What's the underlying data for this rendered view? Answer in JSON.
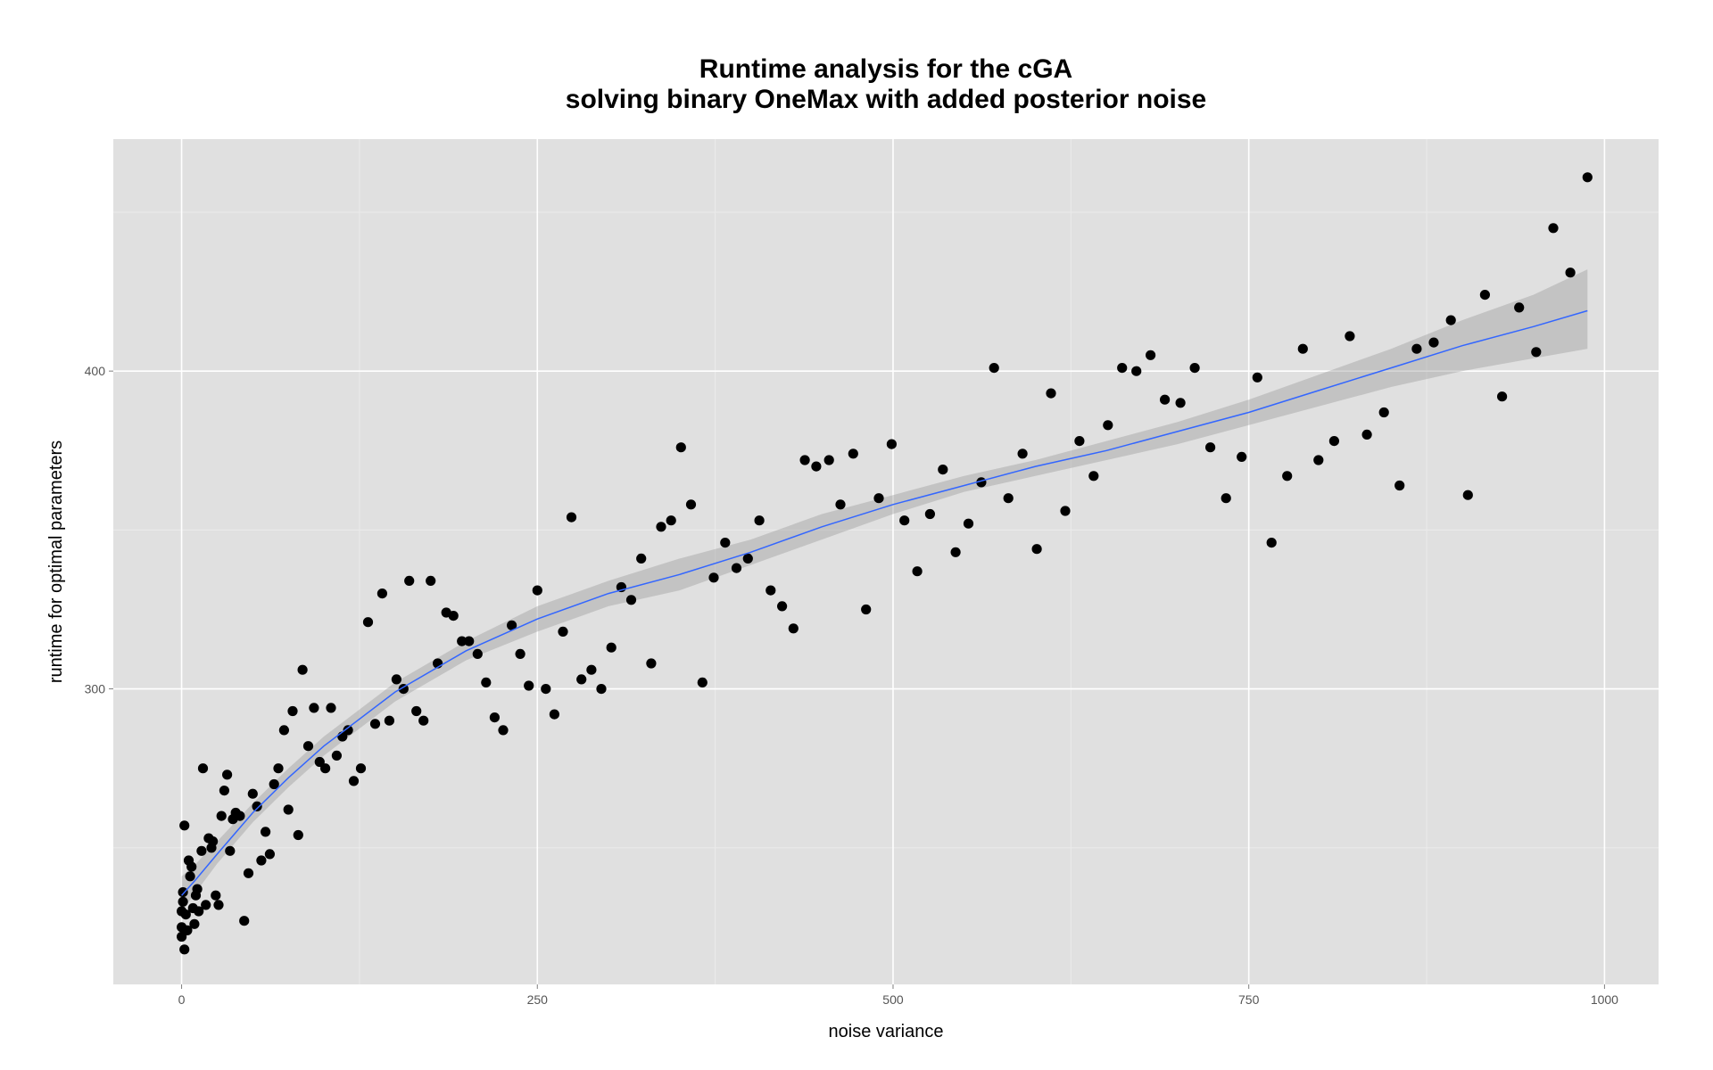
{
  "chart_data": {
    "type": "scatter",
    "title_line1": "Runtime analysis for the cGA",
    "title_line2": "solving binary OneMax with added posterior noise",
    "xlabel": "noise variance",
    "ylabel": "runtime for optimal parameters",
    "xlim": [
      -48,
      1038
    ],
    "ylim": [
      207,
      473
    ],
    "x_ticks": [
      0,
      250,
      500,
      750,
      1000
    ],
    "x_tick_labels": [
      "0",
      "250",
      "500",
      "750",
      "1000"
    ],
    "y_ticks": [
      300,
      400
    ],
    "y_tick_labels": [
      "300",
      "400"
    ],
    "y_minor_ticks": [
      250,
      350,
      450
    ],
    "x_minor_ticks": [
      125,
      375,
      625,
      875
    ],
    "grid": true,
    "colors": {
      "panel_background": "#e0e0e0",
      "grid_major": "#ffffff",
      "grid_minor": "#ebebeb",
      "points": "#000000",
      "smooth_line": "#3366ff",
      "confidence_band": "#999999"
    },
    "series": [
      {
        "points": [
          [
            0,
            222
          ],
          [
            0,
            225
          ],
          [
            0,
            230
          ],
          [
            1,
            233
          ],
          [
            1,
            236
          ],
          [
            2,
            218
          ],
          [
            2,
            257
          ],
          [
            3,
            229
          ],
          [
            4,
            224
          ],
          [
            5,
            246
          ],
          [
            6,
            241
          ],
          [
            7,
            244
          ],
          [
            8,
            231
          ],
          [
            9,
            226
          ],
          [
            10,
            235
          ],
          [
            11,
            237
          ],
          [
            12,
            230
          ],
          [
            14,
            249
          ],
          [
            15,
            275
          ],
          [
            17,
            232
          ],
          [
            19,
            253
          ],
          [
            21,
            250
          ],
          [
            22,
            252
          ],
          [
            24,
            235
          ],
          [
            26,
            232
          ],
          [
            28,
            260
          ],
          [
            30,
            268
          ],
          [
            32,
            273
          ],
          [
            34,
            249
          ],
          [
            36,
            259
          ],
          [
            38,
            261
          ],
          [
            41,
            260
          ],
          [
            44,
            227
          ],
          [
            47,
            242
          ],
          [
            50,
            267
          ],
          [
            53,
            263
          ],
          [
            56,
            246
          ],
          [
            59,
            255
          ],
          [
            62,
            248
          ],
          [
            65,
            270
          ],
          [
            68,
            275
          ],
          [
            72,
            287
          ],
          [
            75,
            262
          ],
          [
            78,
            293
          ],
          [
            82,
            254
          ],
          [
            85,
            306
          ],
          [
            89,
            282
          ],
          [
            93,
            294
          ],
          [
            97,
            277
          ],
          [
            101,
            275
          ],
          [
            105,
            294
          ],
          [
            109,
            279
          ],
          [
            113,
            285
          ],
          [
            117,
            287
          ],
          [
            121,
            271
          ],
          [
            126,
            275
          ],
          [
            131,
            321
          ],
          [
            136,
            289
          ],
          [
            141,
            330
          ],
          [
            146,
            290
          ],
          [
            151,
            303
          ],
          [
            156,
            300
          ],
          [
            160,
            334
          ],
          [
            165,
            293
          ],
          [
            170,
            290
          ],
          [
            175,
            334
          ],
          [
            180,
            308
          ],
          [
            186,
            324
          ],
          [
            191,
            323
          ],
          [
            197,
            315
          ],
          [
            202,
            315
          ],
          [
            208,
            311
          ],
          [
            214,
            302
          ],
          [
            220,
            291
          ],
          [
            226,
            287
          ],
          [
            232,
            320
          ],
          [
            238,
            311
          ],
          [
            244,
            301
          ],
          [
            250,
            331
          ],
          [
            256,
            300
          ],
          [
            262,
            292
          ],
          [
            268,
            318
          ],
          [
            274,
            354
          ],
          [
            281,
            303
          ],
          [
            288,
            306
          ],
          [
            295,
            300
          ],
          [
            302,
            313
          ],
          [
            309,
            332
          ],
          [
            316,
            328
          ],
          [
            323,
            341
          ],
          [
            330,
            308
          ],
          [
            337,
            351
          ],
          [
            344,
            353
          ],
          [
            351,
            376
          ],
          [
            358,
            358
          ],
          [
            366,
            302
          ],
          [
            374,
            335
          ],
          [
            382,
            346
          ],
          [
            390,
            338
          ],
          [
            398,
            341
          ],
          [
            406,
            353
          ],
          [
            414,
            331
          ],
          [
            422,
            326
          ],
          [
            430,
            319
          ],
          [
            438,
            372
          ],
          [
            446,
            370
          ],
          [
            455,
            372
          ],
          [
            463,
            358
          ],
          [
            472,
            374
          ],
          [
            481,
            325
          ],
          [
            490,
            360
          ],
          [
            499,
            377
          ],
          [
            508,
            353
          ],
          [
            517,
            337
          ],
          [
            526,
            355
          ],
          [
            535,
            369
          ],
          [
            544,
            343
          ],
          [
            553,
            352
          ],
          [
            562,
            365
          ],
          [
            571,
            401
          ],
          [
            581,
            360
          ],
          [
            591,
            374
          ],
          [
            601,
            344
          ],
          [
            611,
            393
          ],
          [
            621,
            356
          ],
          [
            631,
            378
          ],
          [
            641,
            367
          ],
          [
            651,
            383
          ],
          [
            661,
            401
          ],
          [
            671,
            400
          ],
          [
            681,
            405
          ],
          [
            691,
            391
          ],
          [
            702,
            390
          ],
          [
            712,
            401
          ],
          [
            723,
            376
          ],
          [
            734,
            360
          ],
          [
            745,
            373
          ],
          [
            756,
            398
          ],
          [
            766,
            346
          ],
          [
            777,
            367
          ],
          [
            788,
            407
          ],
          [
            799,
            372
          ],
          [
            810,
            378
          ],
          [
            821,
            411
          ],
          [
            833,
            380
          ],
          [
            845,
            387
          ],
          [
            856,
            364
          ],
          [
            868,
            407
          ],
          [
            880,
            409
          ],
          [
            892,
            416
          ],
          [
            904,
            361
          ],
          [
            916,
            424
          ],
          [
            928,
            392
          ],
          [
            940,
            420
          ],
          [
            952,
            406
          ],
          [
            964,
            445
          ],
          [
            976,
            431
          ],
          [
            988,
            461
          ]
        ]
      }
    ],
    "smooth": {
      "x": [
        0,
        10,
        25,
        50,
        75,
        100,
        150,
        200,
        250,
        300,
        350,
        400,
        450,
        500,
        550,
        600,
        650,
        700,
        750,
        800,
        850,
        900,
        950,
        988
      ],
      "y": [
        235,
        240,
        248,
        261,
        272,
        282,
        299,
        312,
        322,
        330,
        336,
        343,
        351,
        358,
        364,
        370,
        375,
        381,
        387,
        394,
        401,
        408,
        414,
        419
      ],
      "lower": [
        230,
        236,
        245,
        258,
        269,
        279,
        296,
        309,
        318,
        326,
        331,
        339,
        347,
        355,
        362,
        367,
        372,
        377,
        383,
        389,
        395,
        400,
        404,
        407
      ],
      "upper": [
        241,
        245,
        252,
        264,
        275,
        285,
        302,
        315,
        326,
        334,
        341,
        347,
        355,
        361,
        367,
        372,
        378,
        384,
        391,
        399,
        407,
        416,
        424,
        432
      ]
    }
  }
}
